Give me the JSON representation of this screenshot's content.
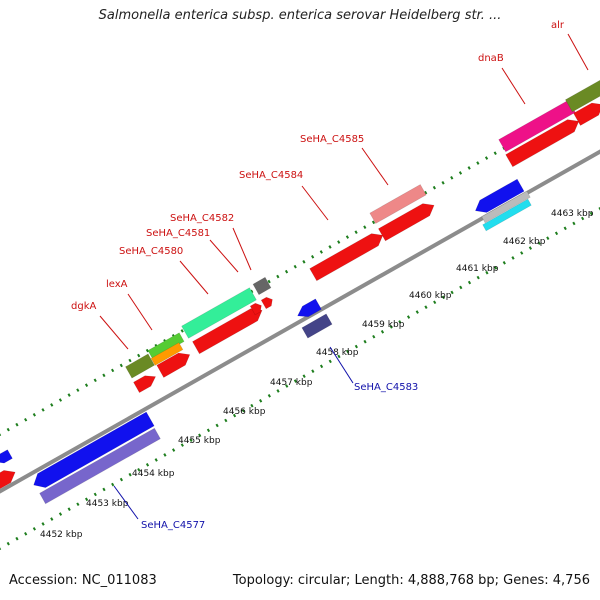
{
  "title": "Salmonella enterica subsp. enterica serovar Heidelberg str. ...",
  "footer": {
    "accession": "Accession: NC_011083",
    "summary": "Topology: circular; Length: 4,888,768 bp; Genes: 4,756"
  },
  "colors": {
    "backbone": "#8c8c8c",
    "tick": "#1e7e1e",
    "forward_label": "#cc1111",
    "reverse_label": "#1111aa"
  },
  "scale_labels": [
    "4452 kbp",
    "4453 kbp",
    "4454 kbp",
    "4455 kbp",
    "4456 kbp",
    "4457 kbp",
    "4458 kbp",
    "4459 kbp",
    "4460 kbp",
    "4461 kbp",
    "4462 kbp",
    "4463 kbp"
  ],
  "gene_labels": {
    "forward": [
      "dgkA",
      "lexA",
      "SeHA_C4580",
      "SeHA_C4581",
      "SeHA_C4582",
      "SeHA_C4584",
      "SeHA_C4585",
      "dnaB",
      "alr"
    ],
    "reverse": [
      "SeHA_C4577",
      "SeHA_C4583"
    ]
  }
}
